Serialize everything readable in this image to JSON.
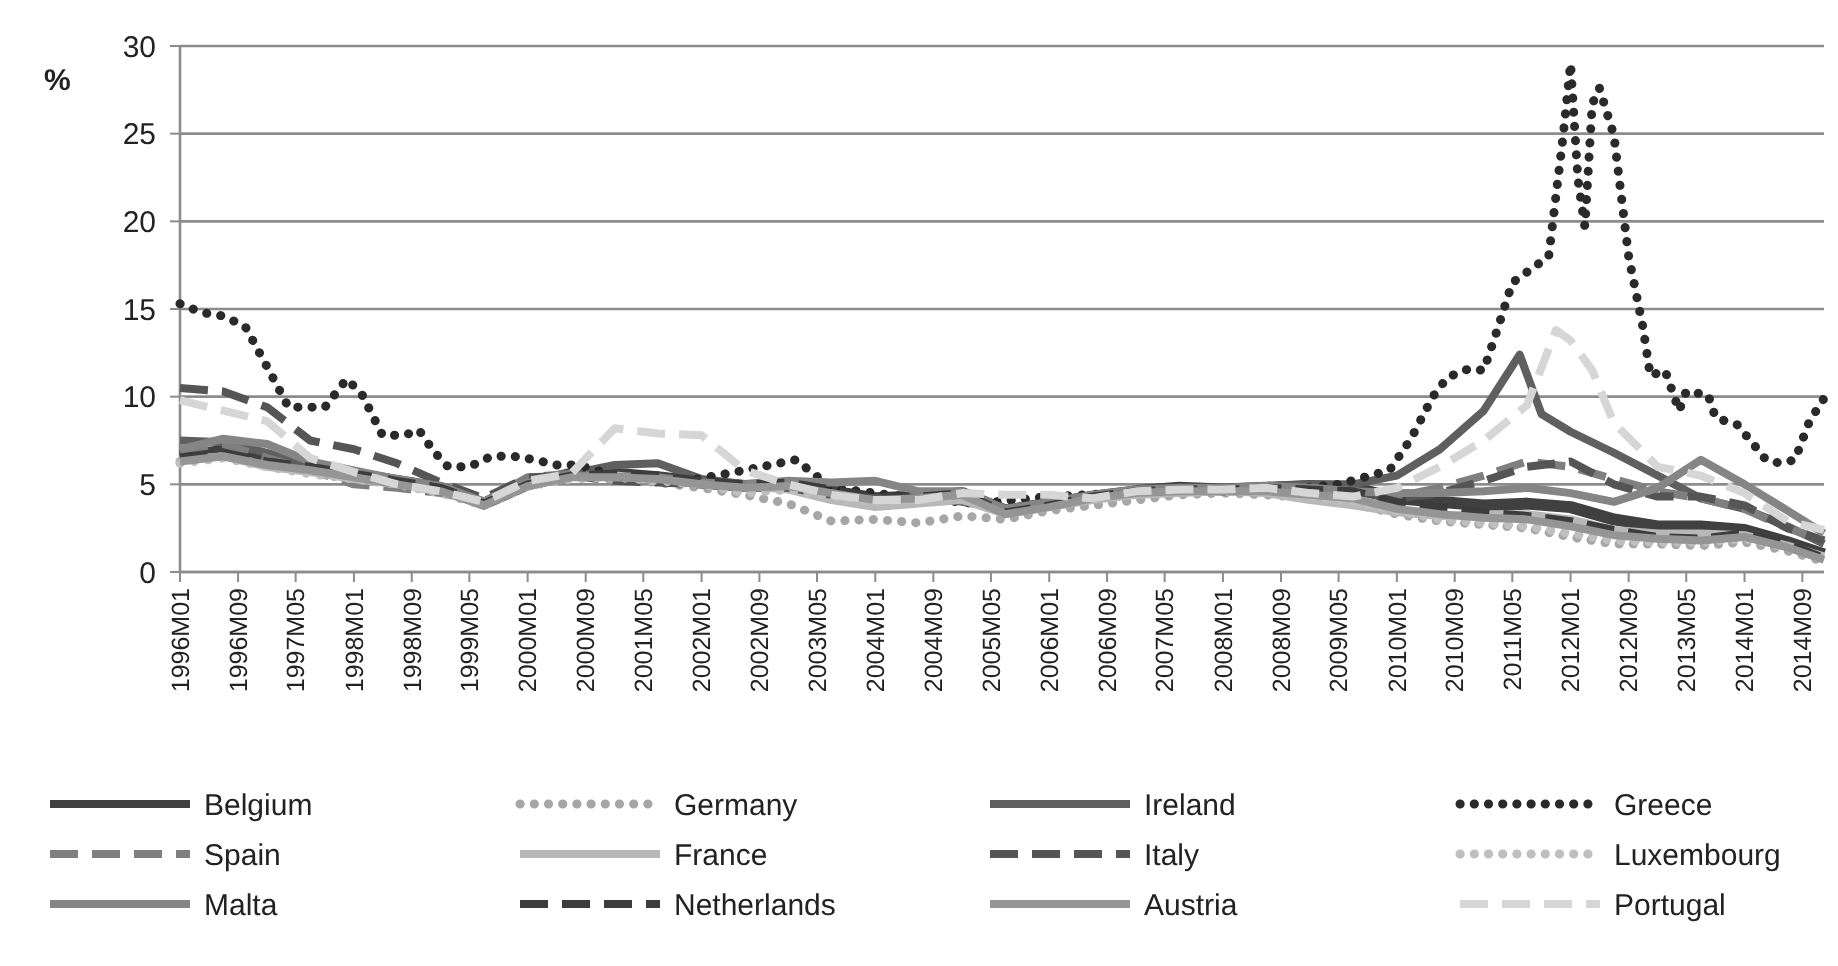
{
  "chart_data": {
    "type": "line",
    "ylabel": "%",
    "ylim": [
      0,
      30
    ],
    "yticks": [
      0,
      5,
      10,
      15,
      20,
      25,
      30
    ],
    "grid": "y",
    "legend": "bottom",
    "marker": "none",
    "xlim": [
      "1996-01",
      "2014-12"
    ],
    "xticks": [
      {
        "value": "1996-01",
        "label": "1996M01"
      },
      {
        "value": "1996-09",
        "label": "1996M09"
      },
      {
        "value": "1997-05",
        "label": "1997M05"
      },
      {
        "value": "1998-01",
        "label": "1998M01"
      },
      {
        "value": "1998-09",
        "label": "1998M09"
      },
      {
        "value": "1999-05",
        "label": "1999M05"
      },
      {
        "value": "2000-01",
        "label": "2000M01"
      },
      {
        "value": "2000-09",
        "label": "2000M09"
      },
      {
        "value": "2001-05",
        "label": "2001M05"
      },
      {
        "value": "2002-01",
        "label": "2002M01"
      },
      {
        "value": "2002-09",
        "label": "2002M09"
      },
      {
        "value": "2003-05",
        "label": "2003M05"
      },
      {
        "value": "2004-01",
        "label": "2004M01"
      },
      {
        "value": "2004-09",
        "label": "2004M09"
      },
      {
        "value": "2005-05",
        "label": "2005M05"
      },
      {
        "value": "2006-01",
        "label": "2006M01"
      },
      {
        "value": "2006-09",
        "label": "2006M09"
      },
      {
        "value": "2007-05",
        "label": "2007M05"
      },
      {
        "value": "2008-01",
        "label": "2008M01"
      },
      {
        "value": "2008-09",
        "label": "2008M09"
      },
      {
        "value": "2009-05",
        "label": "2009M05"
      },
      {
        "value": "2010-01",
        "label": "2010M01"
      },
      {
        "value": "2010-09",
        "label": "2010M09"
      },
      {
        "value": "2011-05",
        "label": "2011M05"
      },
      {
        "value": "2012-01",
        "label": "2012M01"
      },
      {
        "value": "2012-09",
        "label": "2012M09"
      },
      {
        "value": "2013-05",
        "label": "2013M05"
      },
      {
        "value": "2014-01",
        "label": "2014M01"
      },
      {
        "value": "2014-09",
        "label": "2014M09"
      }
    ],
    "x": [
      "1996-01",
      "1996-07",
      "1997-01",
      "1997-07",
      "1998-01",
      "1998-07",
      "1999-01",
      "1999-07",
      "2000-01",
      "2000-07",
      "2001-01",
      "2001-07",
      "2002-01",
      "2002-07",
      "2003-01",
      "2003-07",
      "2004-01",
      "2004-07",
      "2005-01",
      "2005-07",
      "2006-01",
      "2006-07",
      "2007-01",
      "2007-07",
      "2008-01",
      "2008-07",
      "2009-01",
      "2009-07",
      "2010-01",
      "2010-07",
      "2011-01",
      "2011-07",
      "2012-01",
      "2012-07",
      "2013-01",
      "2013-07",
      "2014-01",
      "2014-07",
      "2014-12"
    ],
    "series": [
      {
        "name": "Belgium",
        "color": "#404040",
        "line_style": "solid",
        "values": [
          6.6,
          6.9,
          6.4,
          6.0,
          5.6,
          5.2,
          4.8,
          3.9,
          5.0,
          5.6,
          5.6,
          5.4,
          5.1,
          4.9,
          5.0,
          4.6,
          4.2,
          4.3,
          4.5,
          3.5,
          3.9,
          4.3,
          4.6,
          4.8,
          4.7,
          4.8,
          4.9,
          4.8,
          4.2,
          4.0,
          3.8,
          3.9,
          3.7,
          3.0,
          2.6,
          2.6,
          2.4,
          1.7,
          1.0
        ]
      },
      {
        "name": "Germany",
        "color": "#a6a6a6",
        "line_style": "dotted",
        "values": [
          6.3,
          6.6,
          6.1,
          5.8,
          5.3,
          5.0,
          4.6,
          3.8,
          5.1,
          5.4,
          5.3,
          5.1,
          4.8,
          4.4,
          3.9,
          2.9,
          3.0,
          2.8,
          3.2,
          3.0,
          3.5,
          3.8,
          4.1,
          4.4,
          4.5,
          4.4,
          4.2,
          3.9,
          3.3,
          2.9,
          2.7,
          2.5,
          2.0,
          1.6,
          1.6,
          1.5,
          1.7,
          1.2,
          0.6
        ]
      },
      {
        "name": "Ireland",
        "color": "#5f5f5f",
        "line_style": "solid",
        "x": [
          "1996-01",
          "1996-07",
          "1997-01",
          "1997-07",
          "1998-01",
          "1998-07",
          "1999-01",
          "1999-07",
          "2000-01",
          "2000-07",
          "2001-01",
          "2001-07",
          "2002-01",
          "2002-07",
          "2003-01",
          "2003-07",
          "2004-01",
          "2004-07",
          "2005-01",
          "2005-07",
          "2006-01",
          "2006-07",
          "2007-01",
          "2007-07",
          "2008-01",
          "2008-07",
          "2009-01",
          "2009-07",
          "2010-01",
          "2010-07",
          "2011-01",
          "2011-06",
          "2011-09",
          "2012-01",
          "2012-07",
          "2013-01",
          "2013-07",
          "2014-01",
          "2014-07",
          "2014-12"
        ],
        "values": [
          7.5,
          7.4,
          6.8,
          6.0,
          5.4,
          5.0,
          4.6,
          4.0,
          5.2,
          5.6,
          6.1,
          6.2,
          5.3,
          5.0,
          4.9,
          4.5,
          4.1,
          4.3,
          4.0,
          3.6,
          3.9,
          4.3,
          4.6,
          4.7,
          4.7,
          4.9,
          5.0,
          5.0,
          5.5,
          7.0,
          9.2,
          12.4,
          9.0,
          8.0,
          6.8,
          5.5,
          4.2,
          3.6,
          2.6,
          1.6
        ]
      },
      {
        "name": "Greece",
        "color": "#2a2a2a",
        "line_style": "dotted",
        "x": [
          "1996-01",
          "1996-04",
          "1996-07",
          "1996-10",
          "1997-01",
          "1997-04",
          "1997-09",
          "1997-12",
          "1998-02",
          "1998-05",
          "1998-08",
          "1998-10",
          "1998-12",
          "1999-02",
          "1999-05",
          "1999-08",
          "1999-11",
          "2000-02",
          "2000-05",
          "2000-08",
          "2001-01",
          "2001-11",
          "2002-07",
          "2003-02",
          "2003-07",
          "2004-05",
          "2005-03",
          "2006-01",
          "2006-11",
          "2007-09",
          "2008-07",
          "2009-05",
          "2009-12",
          "2010-03",
          "2010-06",
          "2010-08",
          "2010-11",
          "2011-01",
          "2011-03",
          "2011-05",
          "2011-08",
          "2011-10",
          "2011-12",
          "2012-01",
          "2012-02",
          "2012-03",
          "2012-04",
          "2012-05",
          "2012-07",
          "2012-09",
          "2012-11",
          "2012-12",
          "2013-02",
          "2013-04",
          "2013-05",
          "2013-08",
          "2013-09",
          "2013-12",
          "2014-02",
          "2014-04",
          "2014-06",
          "2014-08",
          "2014-10",
          "2014-12"
        ],
        "values": [
          15.3,
          14.8,
          14.6,
          14.0,
          11.7,
          9.4,
          9.4,
          11.0,
          10.2,
          7.8,
          7.8,
          8.1,
          6.9,
          6.0,
          6.0,
          6.6,
          6.6,
          6.4,
          6.1,
          6.1,
          5.5,
          5.2,
          5.8,
          6.4,
          4.8,
          4.3,
          3.9,
          4.3,
          4.5,
          4.6,
          4.6,
          5.0,
          5.8,
          7.6,
          10.0,
          11.1,
          11.6,
          11.5,
          13.9,
          16.5,
          17.4,
          18.0,
          24.9,
          29.0,
          22.4,
          19.7,
          26.7,
          27.6,
          24.9,
          18.0,
          13.9,
          11.2,
          11.5,
          9.2,
          10.3,
          10.1,
          8.8,
          8.4,
          7.4,
          6.4,
          6.2,
          6.4,
          8.6,
          9.9
        ]
      },
      {
        "name": "Spain",
        "color": "#7f7f7f",
        "line_style": "dashed",
        "values": [
          7.0,
          7.3,
          6.5,
          5.8,
          5.0,
          4.8,
          4.5,
          4.0,
          5.4,
          5.6,
          5.5,
          5.3,
          5.0,
          4.9,
          4.8,
          4.1,
          4.0,
          4.4,
          4.5,
          3.4,
          3.9,
          4.3,
          4.6,
          4.7,
          4.7,
          4.9,
          4.7,
          4.5,
          4.3,
          4.8,
          5.5,
          6.3,
          6.0,
          5.3,
          4.6,
          4.2,
          3.6,
          2.5,
          1.8
        ]
      },
      {
        "name": "France",
        "color": "#b8b8b8",
        "line_style": "solid",
        "values": [
          6.4,
          6.6,
          6.0,
          5.7,
          5.3,
          5.0,
          4.7,
          3.9,
          4.9,
          5.4,
          5.5,
          5.3,
          5.0,
          4.9,
          4.7,
          4.1,
          3.7,
          3.9,
          4.1,
          3.3,
          3.7,
          4.1,
          4.4,
          4.5,
          4.6,
          4.5,
          4.1,
          3.8,
          3.4,
          3.2,
          3.3,
          3.3,
          3.0,
          2.4,
          2.2,
          2.2,
          2.1,
          1.5,
          0.9
        ]
      },
      {
        "name": "Italy",
        "color": "#555555",
        "line_style": "dashed",
        "values": [
          10.5,
          10.3,
          9.4,
          7.5,
          7.0,
          6.2,
          5.1,
          4.2,
          5.4,
          5.5,
          5.2,
          5.1,
          5.0,
          4.8,
          4.8,
          4.4,
          4.2,
          4.3,
          4.4,
          3.6,
          4.0,
          4.3,
          4.6,
          4.7,
          4.7,
          4.8,
          4.6,
          4.6,
          4.2,
          4.5,
          5.2,
          6.0,
          6.3,
          5.0,
          4.3,
          4.3,
          3.8,
          2.5,
          1.8
        ]
      },
      {
        "name": "Luxembourg",
        "color": "#bfbfbf",
        "line_style": "dotted",
        "values": [
          6.2,
          6.5,
          6.0,
          5.6,
          5.3,
          5.0,
          4.5,
          3.8,
          4.9,
          5.3,
          5.4,
          5.2,
          5.0,
          4.5,
          4.7,
          4.3,
          4.0,
          4.2,
          4.4,
          3.3,
          3.7,
          4.2,
          4.5,
          4.6,
          4.6,
          4.6,
          4.3,
          4.0,
          3.5,
          3.0,
          2.8,
          2.6,
          2.2,
          1.8,
          1.7,
          1.7,
          1.9,
          1.4,
          0.7
        ]
      },
      {
        "name": "Malta",
        "color": "#858585",
        "line_style": "solid",
        "values": [
          7.0,
          7.6,
          7.3,
          6.3,
          5.8,
          5.3,
          4.9,
          4.0,
          5.1,
          5.5,
          5.4,
          5.4,
          5.1,
          5.0,
          5.2,
          5.1,
          5.2,
          4.6,
          4.6,
          3.6,
          4.0,
          4.4,
          4.7,
          4.8,
          4.8,
          4.9,
          4.8,
          4.6,
          4.5,
          4.5,
          4.6,
          4.8,
          4.5,
          4.0,
          4.8,
          6.4,
          5.0,
          3.5,
          2.2
        ]
      },
      {
        "name": "Netherlands",
        "color": "#3c3c3c",
        "line_style": "dashed",
        "values": [
          6.5,
          6.8,
          6.3,
          6.0,
          5.6,
          5.2,
          4.8,
          3.9,
          5.0,
          5.5,
          5.6,
          5.5,
          5.2,
          5.0,
          5.1,
          4.7,
          4.3,
          4.3,
          4.5,
          3.4,
          3.8,
          4.3,
          4.6,
          4.7,
          4.7,
          4.8,
          4.7,
          4.6,
          4.0,
          3.7,
          3.4,
          3.2,
          2.9,
          2.4,
          2.0,
          1.9,
          2.2,
          1.6,
          0.8
        ]
      },
      {
        "name": "Austria",
        "color": "#959595",
        "line_style": "solid",
        "values": [
          6.3,
          6.6,
          6.1,
          5.8,
          5.4,
          5.0,
          4.6,
          3.8,
          4.9,
          5.4,
          5.4,
          5.3,
          5.0,
          4.8,
          4.9,
          4.5,
          4.1,
          4.2,
          4.4,
          3.3,
          3.7,
          4.2,
          4.5,
          4.6,
          4.6,
          4.6,
          4.4,
          4.2,
          3.6,
          3.3,
          3.1,
          3.0,
          2.6,
          2.1,
          1.9,
          1.8,
          2.0,
          1.4,
          0.7
        ]
      },
      {
        "name": "Portugal",
        "color": "#d6d6d6",
        "line_style": "dashed",
        "x": [
          "1996-01",
          "1996-07",
          "1997-01",
          "1997-07",
          "1998-01",
          "1998-07",
          "1999-01",
          "1999-07",
          "2000-01",
          "2000-07",
          "2001-01",
          "2001-07",
          "2002-01",
          "2002-07",
          "2003-01",
          "2003-07",
          "2004-01",
          "2004-07",
          "2005-01",
          "2005-07",
          "2006-01",
          "2006-07",
          "2007-01",
          "2007-07",
          "2008-01",
          "2008-07",
          "2009-01",
          "2009-07",
          "2010-01",
          "2010-07",
          "2011-01",
          "2011-07",
          "2011-11",
          "2012-01",
          "2012-04",
          "2012-07",
          "2013-01",
          "2013-07",
          "2014-01",
          "2014-07",
          "2014-12"
        ],
        "values": [
          9.8,
          9.2,
          8.6,
          6.5,
          5.7,
          5.0,
          4.6,
          4.0,
          5.2,
          5.6,
          8.2,
          7.9,
          7.8,
          5.8,
          5.0,
          4.4,
          4.1,
          4.1,
          4.5,
          4.4,
          4.4,
          4.2,
          4.6,
          4.7,
          4.7,
          4.8,
          4.5,
          4.3,
          4.8,
          6.0,
          7.5,
          9.5,
          13.8,
          13.2,
          11.5,
          8.5,
          6.0,
          5.5,
          4.5,
          2.9,
          2.4
        ]
      }
    ]
  }
}
